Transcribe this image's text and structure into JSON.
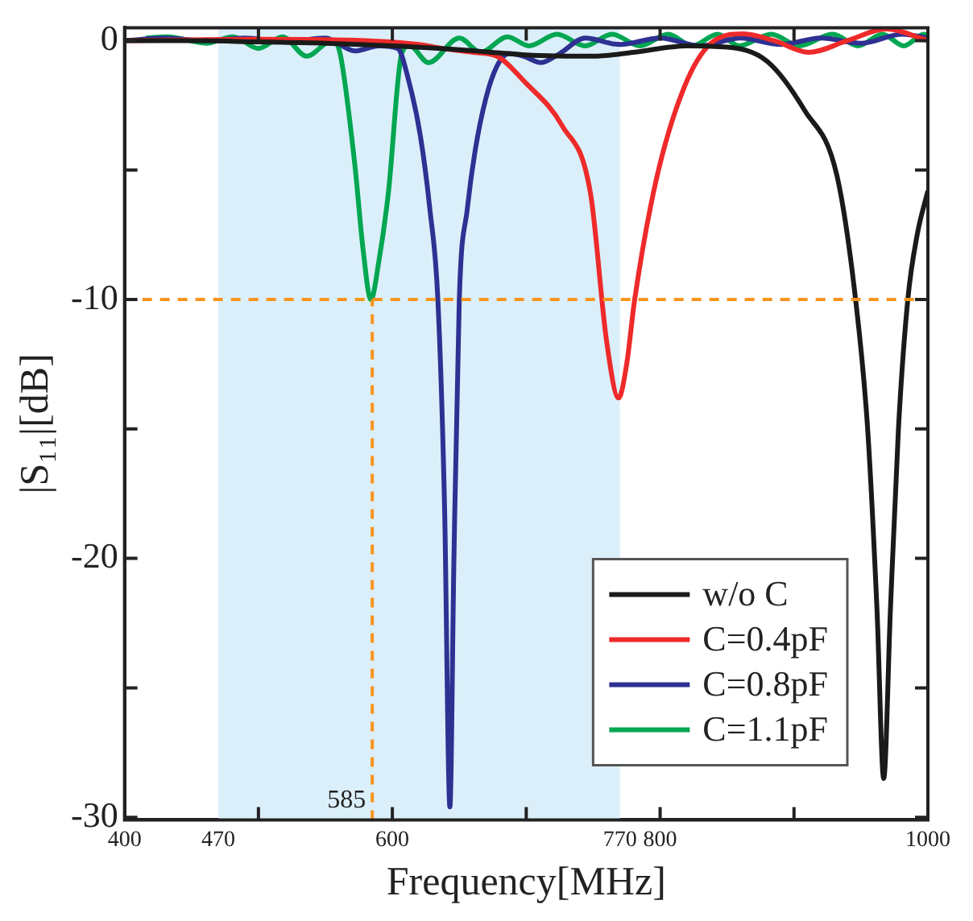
{
  "chart_data": {
    "type": "line",
    "xlabel": "Frequency[MHz]",
    "ylabel": "|S₁₁|[dB]",
    "xlim": [
      400,
      1000
    ],
    "ylim": [
      -30.1,
      0.5
    ],
    "xticks": [
      400,
      470,
      {
        "value": 500,
        "label": null
      },
      600,
      {
        "value": 700,
        "label": null
      },
      770,
      800,
      {
        "value": 900,
        "label": null
      },
      1000
    ],
    "yticks": [
      -30,
      {
        "value": -25,
        "label": null
      },
      -20,
      {
        "value": -15,
        "label": null
      },
      -10,
      {
        "value": -5,
        "label": null
      },
      0
    ],
    "legend": "bottom right",
    "bands": [
      {
        "axis": "x",
        "from": 470,
        "to": 770,
        "color": "#dbeffa"
      }
    ],
    "ref_lines": [
      {
        "axis": "y",
        "value": -10,
        "color": "#f7941d",
        "line_style": "dashed"
      },
      {
        "axis": "x",
        "value": 585,
        "label": "585",
        "color": "#f7941d",
        "line_style": "dashed"
      }
    ],
    "series": [
      {
        "name": "w/o C",
        "color": "#1a1a1a",
        "x": [
          400,
          450,
          500,
          550,
          600,
          650,
          700,
          750,
          780,
          820,
          850,
          880,
          908,
          932,
          946,
          955,
          962,
          967,
          972,
          978,
          985,
          992,
          1000
        ],
        "values": [
          0,
          0,
          -0.05,
          -0.1,
          -0.2,
          -0.35,
          -0.55,
          -0.6,
          -0.45,
          -0.2,
          -0.25,
          -0.8,
          -2.7,
          -5.2,
          -10,
          -15,
          -22,
          -28.5,
          -22,
          -15,
          -10,
          -7.5,
          -5.8
        ]
      },
      {
        "name": "C=0.4pF",
        "color": "#ee2a2a",
        "x": [
          400,
          500,
          580,
          620,
          637,
          660,
          678,
          699,
          727,
          748,
          760,
          769,
          775,
          781,
          797,
          818,
          838,
          862,
          885,
          911,
          940,
          969,
          1000
        ],
        "values": [
          0,
          0.05,
          0,
          -0.15,
          -0.3,
          -0.45,
          -0.6,
          -1.6,
          -3.3,
          -5.9,
          -11.6,
          -13.8,
          -12.5,
          -10,
          -5.4,
          -1.8,
          -0.1,
          0.26,
          0,
          -0.45,
          0,
          0.45,
          0
        ]
      },
      {
        "name": "C=0.8pF",
        "color": "#2e3192",
        "x": [
          400,
          430,
          460,
          490,
          520,
          550,
          572,
          590,
          604,
          612,
          621,
          628,
          634,
          639,
          643,
          646,
          650,
          656,
          662,
          670,
          678,
          687,
          698,
          711,
          725,
          744,
          770,
          800,
          830,
          860,
          890,
          920,
          950,
          981,
          1000
        ],
        "values": [
          0,
          0.1,
          0,
          0.1,
          -0.05,
          0.1,
          -0.4,
          -0.2,
          -0.3,
          -1.5,
          -3.7,
          -6.5,
          -10,
          -18,
          -29.6,
          -20,
          -10,
          -6.5,
          -4.2,
          -2.2,
          -1,
          -0.5,
          -0.6,
          -0.85,
          -0.5,
          0.1,
          -0.15,
          0.1,
          -0.2,
          0.1,
          -0.15,
          0.1,
          -0.1,
          0.25,
          0.1
        ]
      },
      {
        "name": "C=1.1pF",
        "color": "#00a651",
        "x": [
          416,
          432,
          461,
          481,
          500,
          518,
          536,
          555,
          561,
          572,
          578,
          584,
          590,
          597,
          607,
          613,
          627,
          650,
          666,
          686,
          702,
          723,
          744,
          764,
          785,
          806,
          824,
          843,
          859,
          883,
          904,
          929,
          948,
          966,
          982,
          997,
          1000
        ],
        "values": [
          0.1,
          0.15,
          -0.1,
          0.15,
          -0.3,
          0.15,
          -0.6,
          0,
          -0.5,
          -4.8,
          -8,
          -10,
          -8.5,
          -5.9,
          -0.5,
          -0.2,
          -0.85,
          0.1,
          -0.45,
          0.15,
          -0.2,
          0.25,
          -0.2,
          0.25,
          -0.2,
          0.25,
          -0.2,
          0.25,
          -0.2,
          0.25,
          -0.2,
          0.25,
          -0.2,
          0.25,
          -0.2,
          0.25,
          0.2
        ]
      }
    ]
  }
}
